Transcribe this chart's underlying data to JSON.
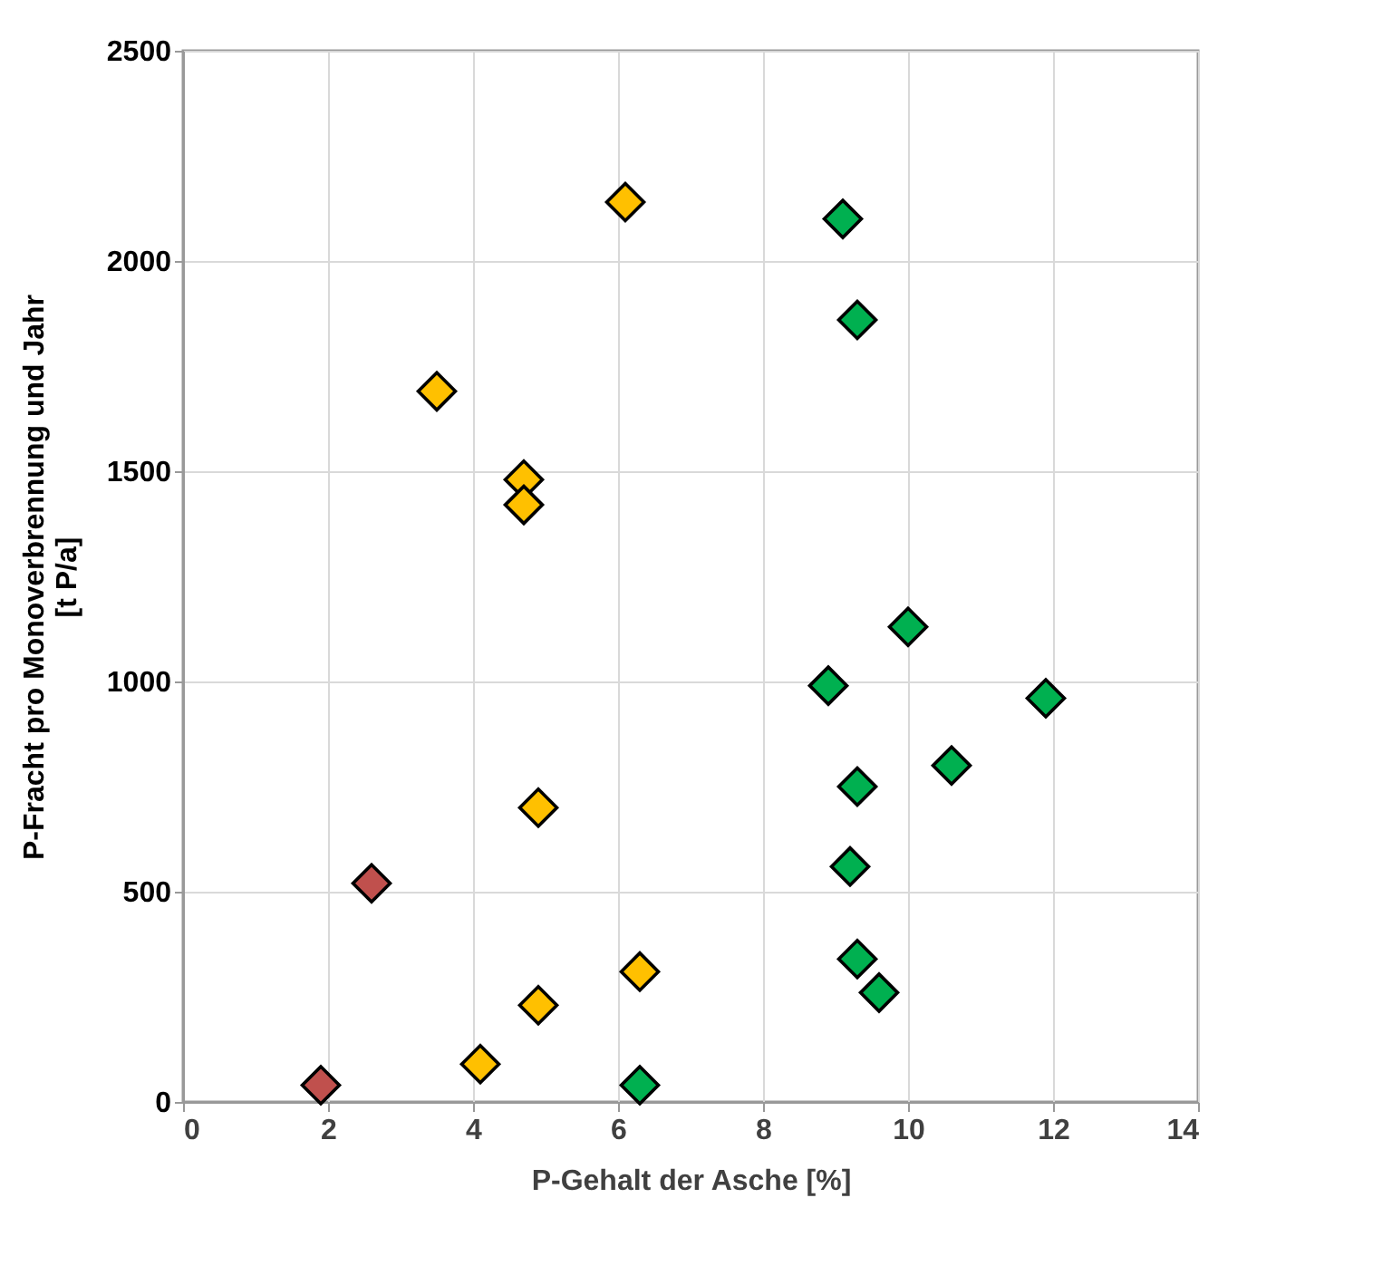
{
  "chart_data": {
    "type": "scatter",
    "xlabel": "P-Gehalt der Asche [%]",
    "ylabel": "P-Fracht pro Monoverbrennung und Jahr\n[t P/a]",
    "xlim": [
      0,
      14
    ],
    "xticks": [
      0,
      2,
      4,
      6,
      8,
      10,
      12,
      14
    ],
    "ylim": [
      0,
      2500
    ],
    "yticks": [
      0,
      500,
      1000,
      1500,
      2000,
      2500
    ],
    "grid": true,
    "marker": "diamond",
    "series": [
      {
        "color": "#c0504d",
        "x": [
          1.9,
          2.6
        ],
        "values": [
          40,
          520
        ]
      },
      {
        "color": "#ffc000",
        "x": [
          6.1,
          3.5,
          4.7,
          4.7,
          4.9,
          6.3,
          4.9,
          4.1
        ],
        "values": [
          2140,
          1690,
          1480,
          1420,
          700,
          310,
          230,
          90
        ]
      },
      {
        "color": "#00b050",
        "x": [
          9.1,
          9.3,
          10.0,
          8.9,
          11.9,
          10.6,
          9.3,
          9.2,
          9.3,
          9.6,
          6.3
        ],
        "values": [
          2100,
          1860,
          1130,
          990,
          960,
          800,
          750,
          560,
          340,
          260,
          40
        ]
      }
    ]
  }
}
